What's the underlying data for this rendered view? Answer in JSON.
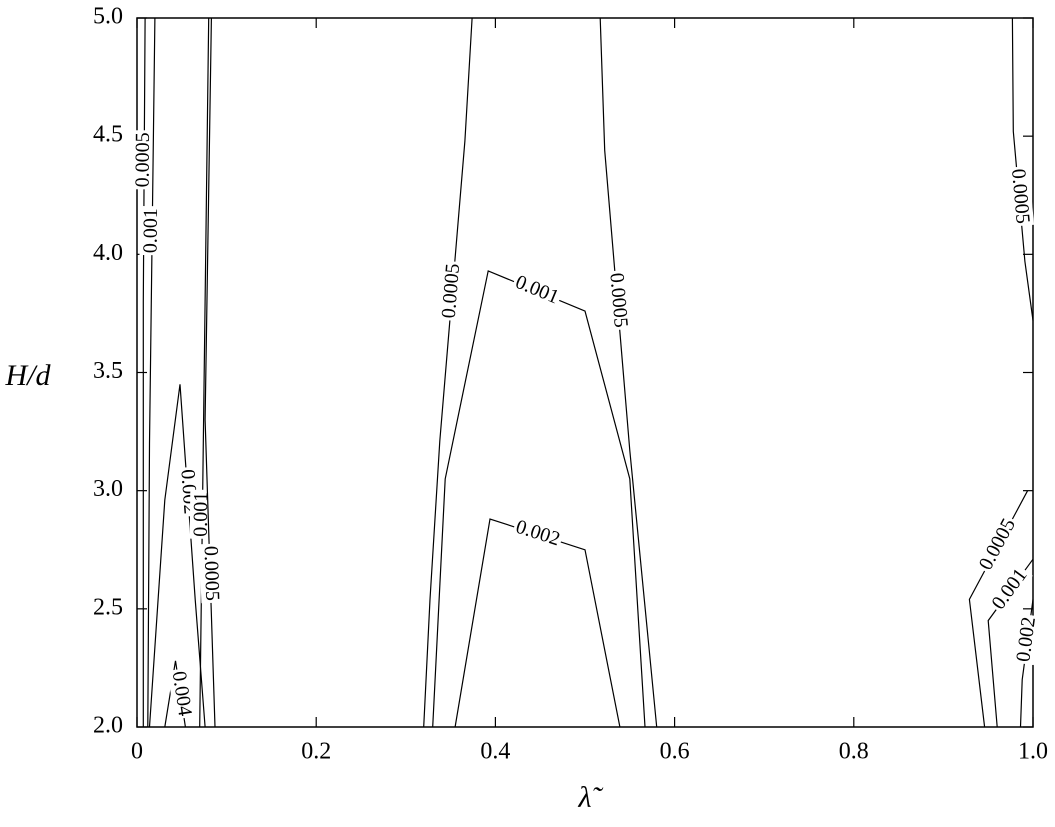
{
  "chart_data": {
    "type": "contour",
    "xlabel": "λ̃",
    "ylabel": "H/d",
    "xlim": [
      0,
      1
    ],
    "ylim": [
      2,
      5
    ],
    "xticks": [
      0,
      0.2,
      0.4,
      0.6,
      0.8,
      {
        "value": 1,
        "label": "1.0"
      }
    ],
    "yticks": [
      {
        "value": 2,
        "label": "2.0"
      },
      2.5,
      {
        "value": 3,
        "label": "3.0"
      },
      3.5,
      {
        "value": 4,
        "label": "4.0"
      },
      4.5,
      {
        "value": 5,
        "label": "5.0"
      }
    ],
    "color": "#000000",
    "contours": [
      {
        "level": 0.0005,
        "x": [
          0.32,
          0.327,
          0.338,
          0.366,
          0.374
        ],
        "y": [
          2.0,
          2.54,
          3.21,
          4.48,
          5.0
        ]
      },
      {
        "level": 0.0005,
        "x": [
          0.517,
          0.522,
          0.55,
          0.58
        ],
        "y": [
          5.0,
          4.44,
          3.17,
          2.0
        ]
      },
      {
        "level": 0.001,
        "x": [
          0.33,
          0.344,
          0.392,
          0.5,
          0.55,
          0.567
        ],
        "y": [
          2.0,
          3.05,
          3.93,
          3.76,
          3.05,
          2.0
        ]
      },
      {
        "level": 0.002,
        "x": [
          0.355,
          0.394,
          0.5,
          0.539
        ],
        "y": [
          2.0,
          2.88,
          2.75,
          2.0
        ]
      },
      {
        "level": 0.0005,
        "x": [
          0.007,
          0.007,
          0.009
        ],
        "y": [
          2.0,
          3.8,
          5.0
        ]
      },
      {
        "level": 0.001,
        "x": [
          0.012,
          0.014,
          0.02
        ],
        "y": [
          2.0,
          3.2,
          5.0
        ]
      },
      {
        "level": 0.002,
        "x": [
          0.014,
          0.031,
          0.048,
          0.065,
          0.076
        ],
        "y": [
          2.0,
          2.96,
          3.45,
          2.54,
          2.0
        ]
      },
      {
        "level": 0.004,
        "x": [
          0.031,
          0.043,
          0.054
        ],
        "y": [
          2.0,
          2.28,
          2.0
        ]
      },
      {
        "level": 0.001,
        "x": [
          0.08,
          0.076,
          0.07
        ],
        "y": [
          5.0,
          3.8,
          2.0
        ]
      },
      {
        "level": 0.0005,
        "x": [
          0.083,
          0.076,
          0.087
        ],
        "y": [
          5.0,
          3.3,
          2.0
        ]
      },
      {
        "level": 0.0005,
        "x": [
          0.977,
          0.978,
          0.991,
          1.0
        ],
        "y": [
          5.0,
          4.52,
          3.97,
          3.72
        ]
      },
      {
        "level": 0.0005,
        "x": [
          0.946,
          0.929,
          0.994
        ],
        "y": [
          2.0,
          2.54,
          3.0
        ]
      },
      {
        "level": 0.001,
        "x": [
          0.96,
          0.95,
          1.0
        ],
        "y": [
          2.0,
          2.45,
          2.71
        ]
      },
      {
        "level": 0.002,
        "x": [
          0.986,
          0.988,
          1.0
        ],
        "y": [
          2.0,
          2.2,
          2.54
        ]
      }
    ]
  }
}
